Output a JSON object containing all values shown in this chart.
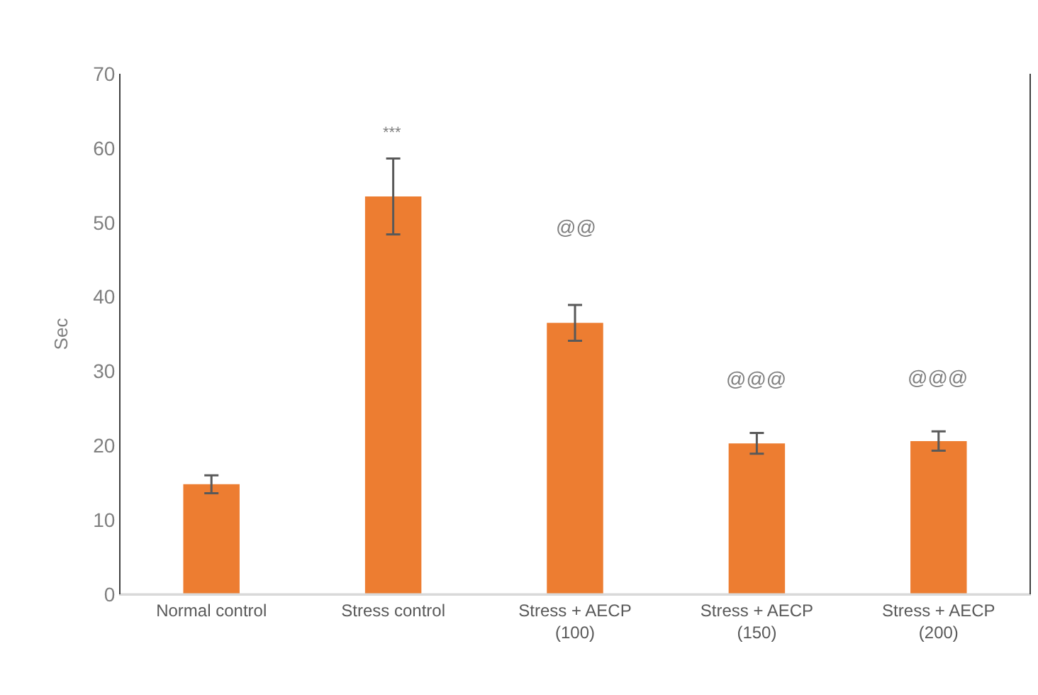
{
  "chart_data": {
    "type": "bar",
    "ylabel": "Sec",
    "categories": [
      "Normal control",
      "Stress control",
      "Stress + AECP\n(100)",
      "Stress + AECP\n(150)",
      "Stress + AECP\n(200)"
    ],
    "values": [
      14.8,
      53.5,
      36.5,
      20.3,
      20.6
    ],
    "errors": [
      1.2,
      5.1,
      2.4,
      1.4,
      1.3
    ],
    "color": "#ed7d31",
    "ylim": [
      0,
      70
    ],
    "yticks": [
      0,
      10,
      20,
      30,
      40,
      50,
      60,
      70
    ],
    "annotations": [
      "***",
      "@@",
      "@@@",
      "@@@"
    ]
  }
}
